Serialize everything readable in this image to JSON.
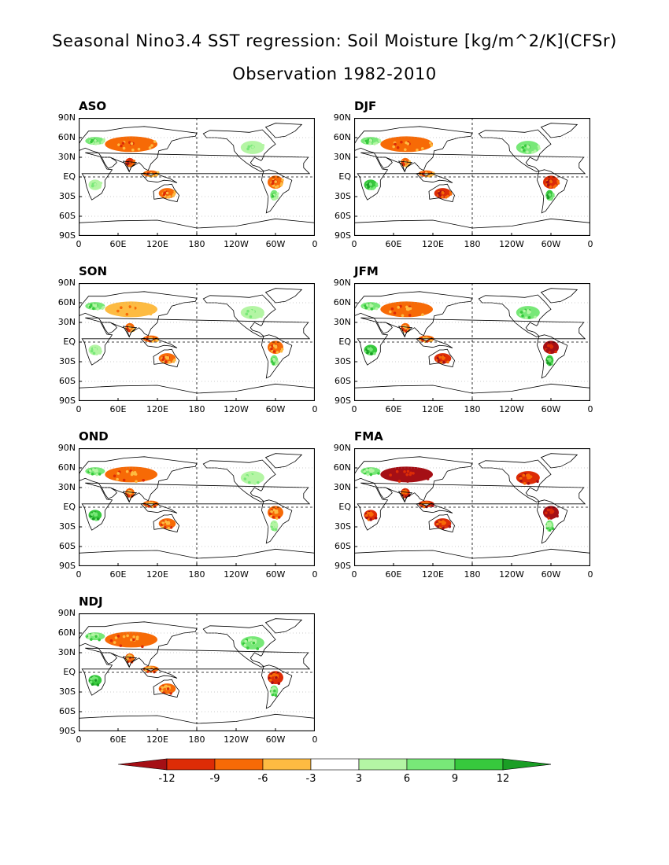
{
  "title": {
    "line1": "Seasonal Nino3.4 SST regression: Soil Moisture [kg/m^2/K](CFSr)",
    "line2": "Observation 1982-2010"
  },
  "axes": {
    "y_ticks": [
      "90N",
      "60N",
      "30N",
      "EQ",
      "30S",
      "60S",
      "90S"
    ],
    "x_ticks": [
      "0",
      "60E",
      "120E",
      "180",
      "120W",
      "60W",
      "0"
    ]
  },
  "panels": [
    {
      "season": "ASO",
      "patterns": {
        "sahel": -2,
        "eurasia": -2,
        "india": -3,
        "se_asia": -2,
        "australia": -2,
        "south_america_north": -2,
        "south_america_south": 2,
        "north_america": 1,
        "africa_south": 1,
        "europe": 2
      }
    },
    {
      "season": "DJF",
      "patterns": {
        "sahel": -1,
        "eurasia": -2,
        "india": -2,
        "se_asia": -2,
        "australia": -3,
        "south_america_north": -3,
        "south_america_south": 3,
        "north_america": 2,
        "africa_south": 3,
        "europe": 2
      }
    },
    {
      "season": "SON",
      "patterns": {
        "sahel": -2,
        "eurasia": -1,
        "india": -2,
        "se_asia": -2,
        "australia": -2,
        "south_america_north": -2,
        "south_america_south": 2,
        "north_america": 1,
        "africa_south": 1,
        "europe": 2
      }
    },
    {
      "season": "JFM",
      "patterns": {
        "sahel": -1,
        "eurasia": -2,
        "india": -2,
        "se_asia": -2,
        "australia": -3,
        "south_america_north": -4,
        "south_america_south": 3,
        "north_america": 2,
        "africa_south": 3,
        "europe": 2
      }
    },
    {
      "season": "OND",
      "patterns": {
        "sahel": -1,
        "eurasia": -2,
        "india": -2,
        "se_asia": -2,
        "australia": -2,
        "south_america_north": -2,
        "south_america_south": 1,
        "north_america": 1,
        "africa_south": 3,
        "europe": 2
      }
    },
    {
      "season": "FMA",
      "patterns": {
        "sahel": -2,
        "eurasia": -4,
        "india": -3,
        "se_asia": -3,
        "australia": -3,
        "south_america_north": -4,
        "south_america_south": 2,
        "north_america": -3,
        "africa_south": -3,
        "europe": 2
      }
    },
    {
      "season": "NDJ",
      "patterns": {
        "sahel": -1,
        "eurasia": -2,
        "india": -2,
        "se_asia": -2,
        "australia": -2,
        "south_america_north": -3,
        "south_america_south": 2,
        "north_america": 2,
        "africa_south": 3,
        "europe": 2
      }
    }
  ],
  "colorbar": {
    "labels": [
      "-12",
      "-9",
      "-6",
      "-3",
      "3",
      "6",
      "9",
      "12"
    ],
    "colors": [
      "#a50f15",
      "#dd2c06",
      "#f76a06",
      "#fdbb42",
      "#ffffff",
      "#b4f5a4",
      "#78e878",
      "#37c93d",
      "#1a9e25"
    ]
  }
}
